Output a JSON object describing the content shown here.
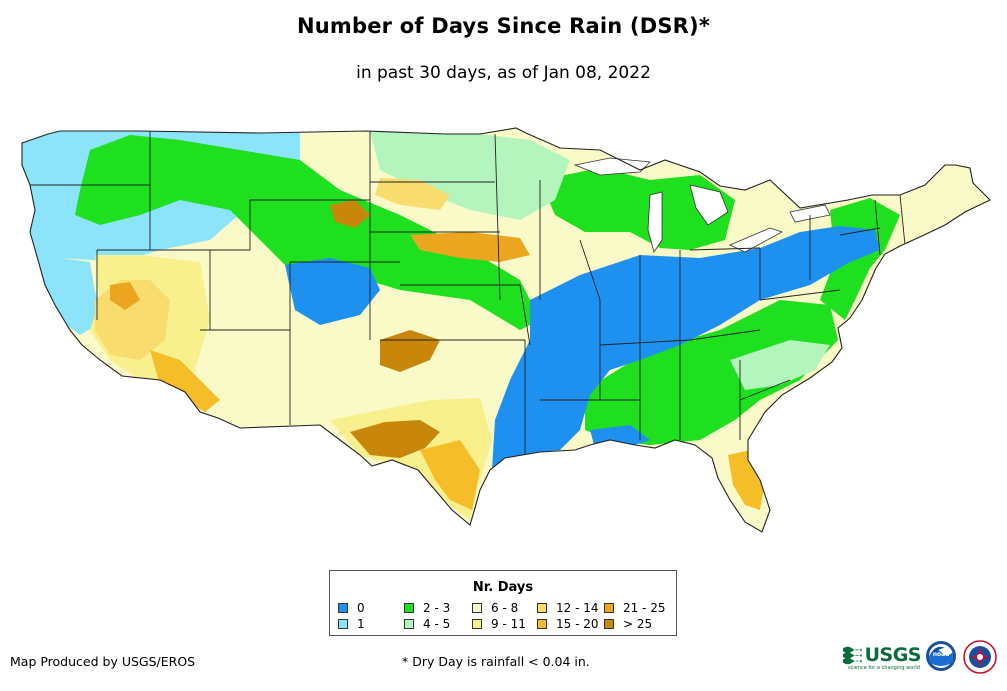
{
  "title": "Number of Days Since Rain (DSR)*",
  "subtitle": "in past 30 days, as of Jan 08, 2022",
  "legend": {
    "title": "Nr. Days",
    "items": [
      {
        "label": "0",
        "color": "#1e90f0"
      },
      {
        "label": "1",
        "color": "#8ce4fa"
      },
      {
        "label": "2 - 3",
        "color": "#1ee01e"
      },
      {
        "label": "4 - 5",
        "color": "#b4f5be"
      },
      {
        "label": "6 - 8",
        "color": "#fafac8"
      },
      {
        "label": "9 - 11",
        "color": "#f8f08c"
      },
      {
        "label": "12 - 14",
        "color": "#f8dc6e"
      },
      {
        "label": "15 - 20",
        "color": "#f5be28"
      },
      {
        "label": "21 - 25",
        "color": "#eba51e"
      },
      {
        "label": "> 25",
        "color": "#c8870a"
      }
    ]
  },
  "footer": {
    "producer": "Map Produced by USGS/EROS",
    "note": "* Dry Day is rainfall < 0.04 in."
  },
  "logos": {
    "usgs": "USGS",
    "usgs_tagline": "science for a changing world",
    "noaa": "noaa"
  }
}
